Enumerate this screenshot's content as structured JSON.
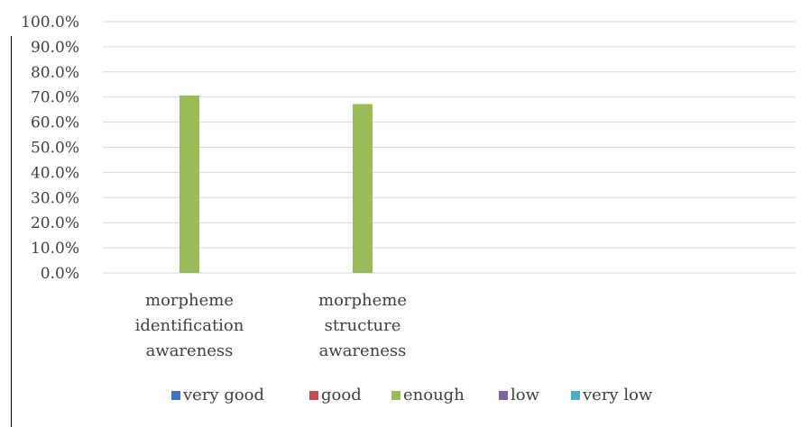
{
  "chart_data": {
    "type": "bar",
    "categories": [
      [
        "morpheme",
        "identification",
        "awareness"
      ],
      [
        "morpheme",
        "structure",
        "awareness"
      ],
      [],
      []
    ],
    "series": [
      {
        "name": "very good",
        "color": "#4472C4",
        "values": [
          0,
          0,
          0,
          0
        ]
      },
      {
        "name": "good",
        "color": "#C0504D",
        "values": [
          0,
          0,
          0,
          0
        ]
      },
      {
        "name": "enough",
        "color": "#9BBB59",
        "values": [
          70.6,
          67.2,
          0,
          0
        ]
      },
      {
        "name": "low",
        "color": "#8064A2",
        "values": [
          0,
          0,
          0,
          0
        ]
      },
      {
        "name": "very low",
        "color": "#4BACC6",
        "values": [
          0,
          0,
          0,
          0
        ]
      }
    ],
    "y_ticks": [
      "0.0%",
      "10.0%",
      "20.0%",
      "30.0%",
      "40.0%",
      "50.0%",
      "60.0%",
      "70.0%",
      "80.0%",
      "90.0%",
      "100.0%"
    ],
    "ylim": [
      0,
      100
    ],
    "grid": true,
    "legend_position": "bottom"
  }
}
